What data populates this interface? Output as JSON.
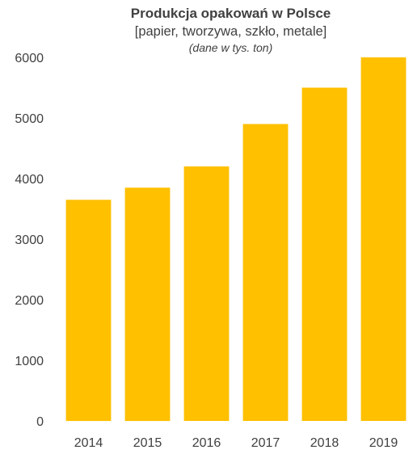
{
  "chart_data": {
    "type": "bar",
    "title": "Produkcja opakowań w Polsce",
    "subtitle": "[papier, tworzywa, szkło, metale]",
    "note": "(dane w tys. ton)",
    "categories": [
      "2014",
      "2015",
      "2016",
      "2017",
      "2018",
      "2019"
    ],
    "values": [
      3650,
      3850,
      4200,
      4900,
      5500,
      6000
    ],
    "ylim": [
      0,
      6000
    ],
    "yticks": [
      "0",
      "1000",
      "2000",
      "3000",
      "4000",
      "5000",
      "6000"
    ],
    "bar_color": "#FFC000",
    "grid": false,
    "legend": "none"
  }
}
